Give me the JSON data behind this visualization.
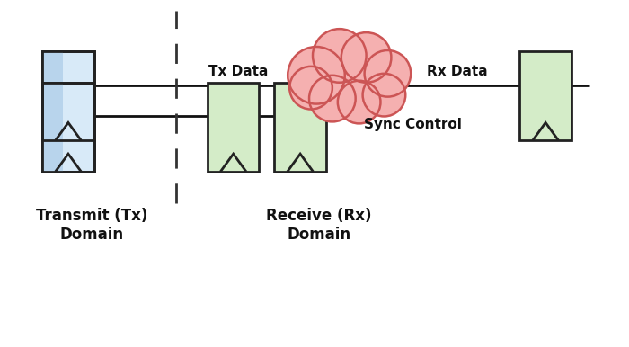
{
  "bg_color": "#ffffff",
  "fig_width": 7.0,
  "fig_height": 3.86,
  "dpi": 100,
  "blue_ff_color_top": "#b8d4ec",
  "blue_ff_color_bot": "#d8eaf8",
  "blue_ff_edge": "#222222",
  "green_ff_color": "#d4ecc8",
  "green_ff_edge": "#222222",
  "cloud_fill": "#f5b0b0",
  "cloud_edge": "#cc5555",
  "tx_data_label": "Tx Data",
  "rx_data_label": "Rx Data",
  "sync_control_label": "Sync Control",
  "transmit_domain_label": "Transmit (Tx)\nDomain",
  "receive_domain_label": "Receive (Rx)\nDomain",
  "line_color": "#111111",
  "text_color": "#111111",
  "ff_lw": 2.0,
  "wire_lw": 2.0,
  "dash_lw": 2.0,
  "cloud_lw": 1.8
}
